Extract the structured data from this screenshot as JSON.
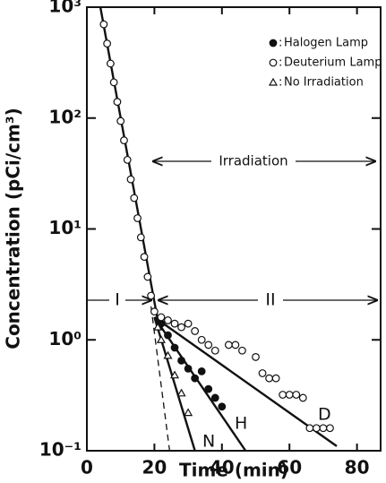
{
  "chart_data": {
    "type": "scatter",
    "xlabel": "Time (min)",
    "ylabel": "Concentration (pCi/cm³)",
    "xlim": [
      0,
      87
    ],
    "ylim": [
      0.1,
      1000
    ],
    "xticks": [
      0,
      20,
      40,
      60,
      80
    ],
    "yticks": [
      {
        "value": 0.1,
        "label": "10⁻¹"
      },
      {
        "value": 1,
        "label": "10⁰"
      },
      {
        "value": 10,
        "label": "10¹"
      },
      {
        "value": 100,
        "label": "10²"
      },
      {
        "value": 1000,
        "label": "10³"
      }
    ],
    "log_y": true,
    "legend_position": "upper right",
    "legend_separator": ":",
    "series": [
      {
        "name": "Halogen Lamp",
        "marker": "filled-circle",
        "color": "#111",
        "x": [
          22,
          24,
          26,
          28,
          30,
          32,
          34,
          36,
          38,
          40
        ],
        "values": [
          1.4,
          1.1,
          0.85,
          0.65,
          0.55,
          0.45,
          0.52,
          0.36,
          0.3,
          0.25
        ]
      },
      {
        "name": "Deuterium Lamp",
        "marker": "open-circle",
        "color": "#111",
        "x": [
          5,
          6,
          7,
          8,
          9,
          10,
          11,
          12,
          13,
          14,
          15,
          16,
          17,
          18,
          19,
          20,
          22,
          24,
          26,
          28,
          30,
          32,
          34,
          36,
          38,
          42,
          44,
          46,
          50,
          52,
          54,
          56,
          58,
          60,
          62,
          64,
          66,
          68,
          70,
          72
        ],
        "values": [
          700,
          470,
          310,
          210,
          140,
          94,
          63,
          42,
          28,
          19,
          12.5,
          8.4,
          5.6,
          3.7,
          2.5,
          1.8,
          1.6,
          1.5,
          1.4,
          1.3,
          1.4,
          1.2,
          1.0,
          0.9,
          0.8,
          0.9,
          0.9,
          0.8,
          0.7,
          0.5,
          0.45,
          0.45,
          0.32,
          0.32,
          0.32,
          0.3,
          0.16,
          0.16,
          0.16,
          0.16
        ]
      },
      {
        "name": "No Irradiation",
        "marker": "open-triangle",
        "color": "#111",
        "x": [
          21,
          22,
          24,
          26,
          28,
          30
        ],
        "values": [
          1.3,
          1.0,
          0.72,
          0.48,
          0.33,
          0.22
        ]
      }
    ],
    "lines": [
      {
        "x": [
          4,
          21
        ],
        "values": [
          1000,
          1.5
        ],
        "style": "solid"
      },
      {
        "x": [
          20,
          74
        ],
        "values": [
          1.6,
          0.11
        ],
        "style": "solid"
      },
      {
        "x": [
          20,
          47
        ],
        "values": [
          1.6,
          0.1
        ],
        "style": "solid"
      },
      {
        "x": [
          20,
          32
        ],
        "values": [
          1.6,
          0.1
        ],
        "style": "solid"
      },
      {
        "x": [
          19,
          24.5
        ],
        "values": [
          2,
          0.1
        ],
        "style": "dashed"
      }
    ],
    "annotations": [
      "Irradiation",
      "I",
      "II",
      "N",
      "H",
      "D"
    ]
  }
}
